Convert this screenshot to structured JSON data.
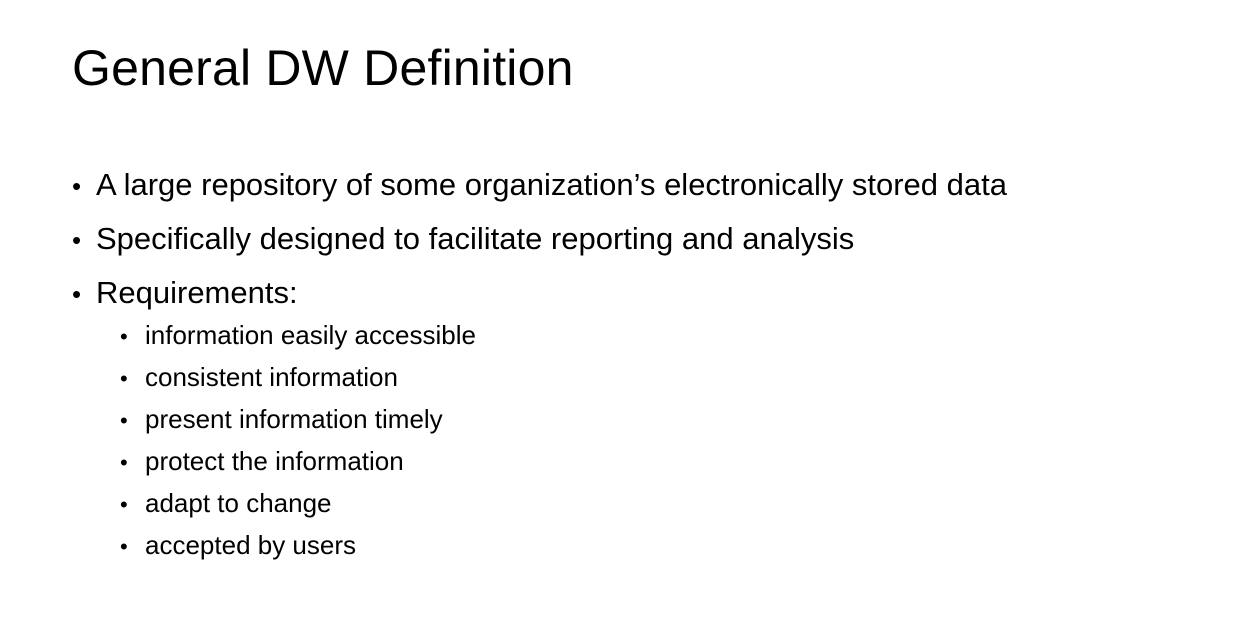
{
  "slide": {
    "title": "General DW Definition",
    "bullet_symbol": "•",
    "bullets": [
      {
        "text": "A large repository of some organization’s electronically stored data"
      },
      {
        "text": "Specifically designed to facilitate reporting and analysis"
      },
      {
        "text": "Requirements:"
      }
    ],
    "sub_bullets": [
      {
        "text": "information easily accessible"
      },
      {
        "text": "consistent information"
      },
      {
        "text": "present information timely"
      },
      {
        "text": "protect the information"
      },
      {
        "text": "adapt to change"
      },
      {
        "text": "accepted by users"
      }
    ]
  }
}
